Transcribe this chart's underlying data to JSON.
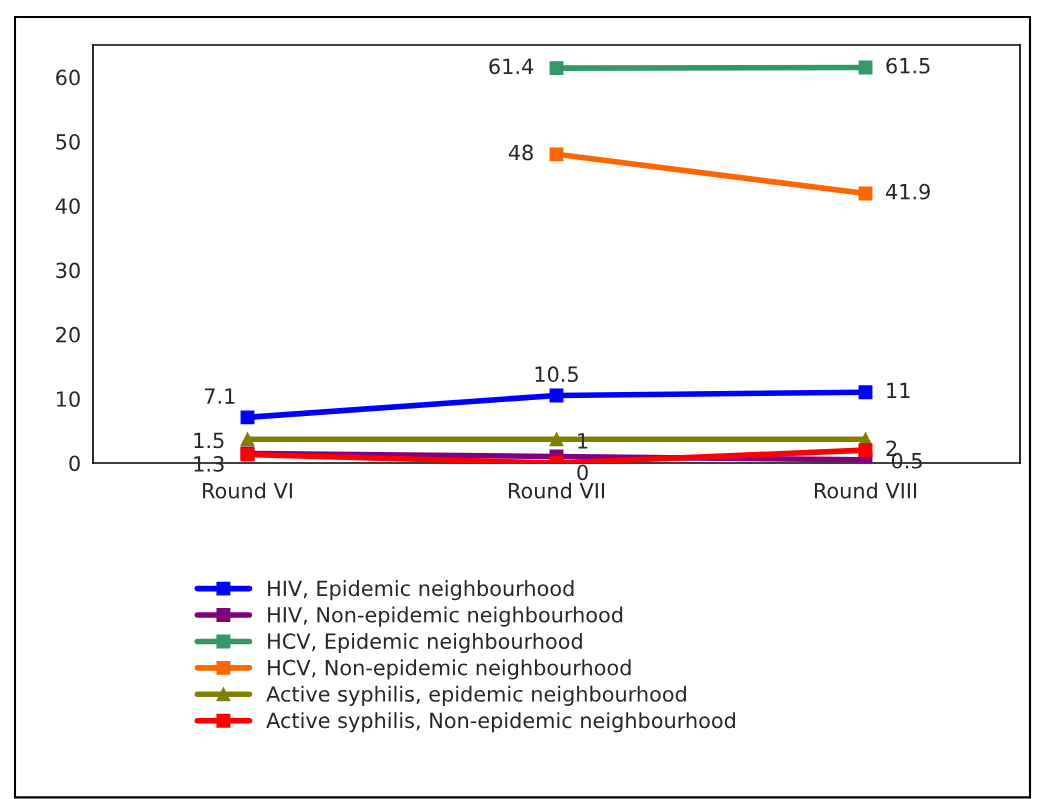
{
  "chart_data": {
    "type": "line",
    "categories": [
      "Round VI",
      "Round VII",
      "Round VIII"
    ],
    "series": [
      {
        "name": "HIV, Epidemic neighbourhood",
        "color": "#0000ff",
        "values": [
          7.1,
          10.5,
          11
        ],
        "value_labels": [
          "7.1",
          "10.5",
          "11"
        ]
      },
      {
        "name": "HIV, Non-epidemic neighbourhood",
        "color": "#800080",
        "values": [
          1.5,
          1,
          0.5
        ],
        "value_labels": [
          "1.5",
          "1",
          "0.5"
        ]
      },
      {
        "name": "HCV, Epidemic neighbourhood",
        "color": "#339966",
        "values": [
          null,
          61.4,
          61.5
        ],
        "value_labels": [
          null,
          "61.4",
          "61.5"
        ]
      },
      {
        "name": "HCV, Non-epidemic neighbourhood",
        "color": "#ff6600",
        "values": [
          null,
          48,
          41.9
        ],
        "value_labels": [
          null,
          "48",
          "41.9"
        ]
      },
      {
        "name": "Active syphilis, epidemic neighbourhood",
        "color": "#808000",
        "marker": "triangle",
        "values": [
          3.7,
          3.7,
          3.7
        ]
      },
      {
        "name": "Active syphilis, Non-epidemic neighbourhood",
        "color": "#ff0000",
        "values": [
          1.3,
          0,
          2
        ],
        "value_labels": [
          "1.3",
          "0",
          "2"
        ]
      }
    ],
    "ylim": [
      0,
      65
    ],
    "yticks": [
      0,
      10,
      20,
      30,
      40,
      50,
      60
    ],
    "marker": "square",
    "line_style": "solid",
    "grid": false,
    "legend": "bottom"
  }
}
